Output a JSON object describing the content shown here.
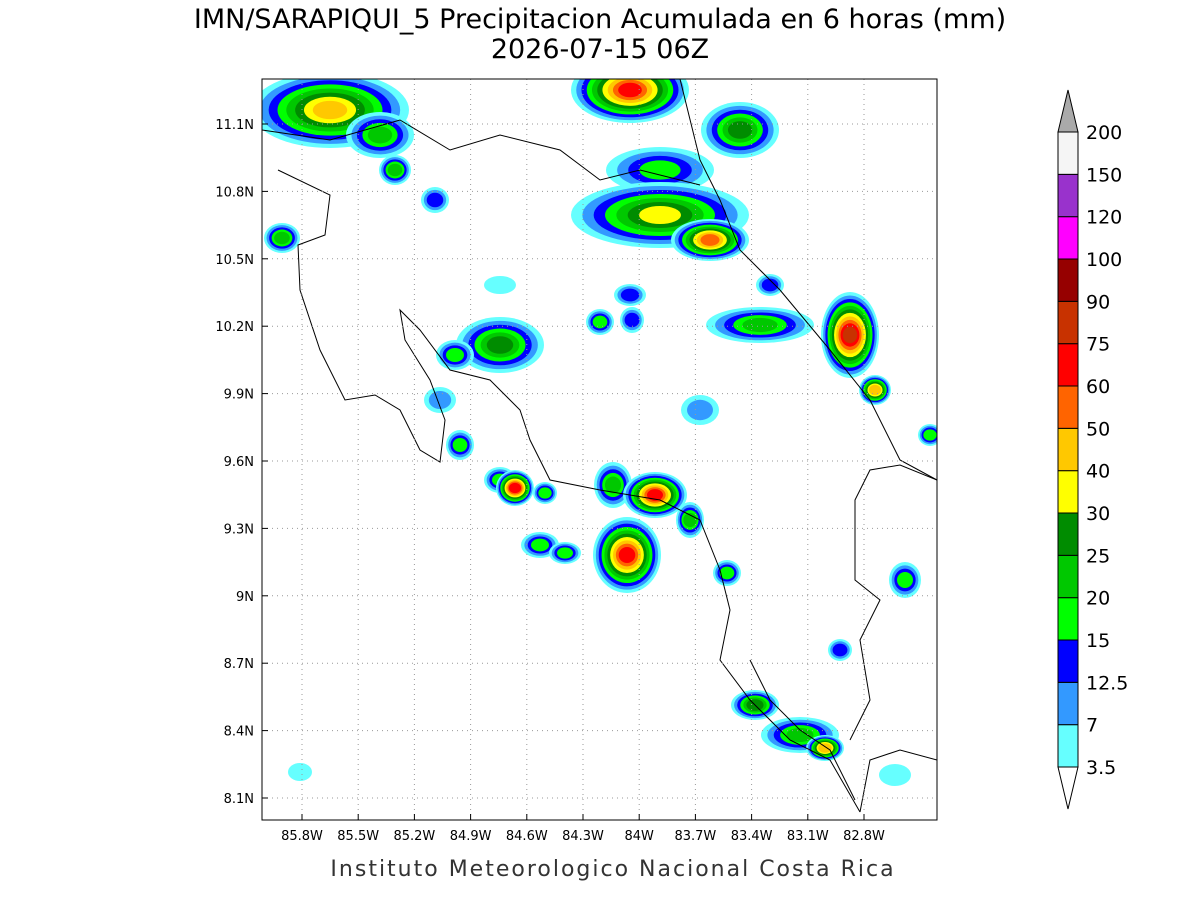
{
  "header": {
    "title": "IMN/SARAPIQUI_5 Precipitacion Acumulada en 6 horas (mm)",
    "subtitle": "2026-07-15 06Z"
  },
  "map": {
    "lon_labels": [
      "85.8W",
      "85.5W",
      "85.2W",
      "84.9W",
      "84.6W",
      "84.3W",
      "84W",
      "83.7W",
      "83.4W",
      "83.1W",
      "82.8W"
    ],
    "lat_labels": [
      "11.1N",
      "10.8N",
      "10.5N",
      "10.2N",
      "9.9N",
      "9.6N",
      "9.3N",
      "9N",
      "8.7N",
      "8.4N",
      "8.1N"
    ],
    "grid": true
  },
  "colorbar": {
    "levels": [
      3.5,
      7,
      12.5,
      15,
      20,
      25,
      30,
      40,
      50,
      60,
      75,
      90,
      100,
      120,
      150,
      200
    ],
    "colors": [
      "#66ffff",
      "#3399ff",
      "#0000ff",
      "#00ff00",
      "#00c800",
      "#008c00",
      "#ffff00",
      "#ffc800",
      "#ff6400",
      "#ff0000",
      "#c83200",
      "#960000",
      "#ff00ff",
      "#9932cc",
      "#f5f5f5"
    ],
    "under_color": "#ffffff",
    "over_color": "#aaaaaa"
  },
  "footer": "Instituto Meteorologico Nacional Costa Rica"
}
